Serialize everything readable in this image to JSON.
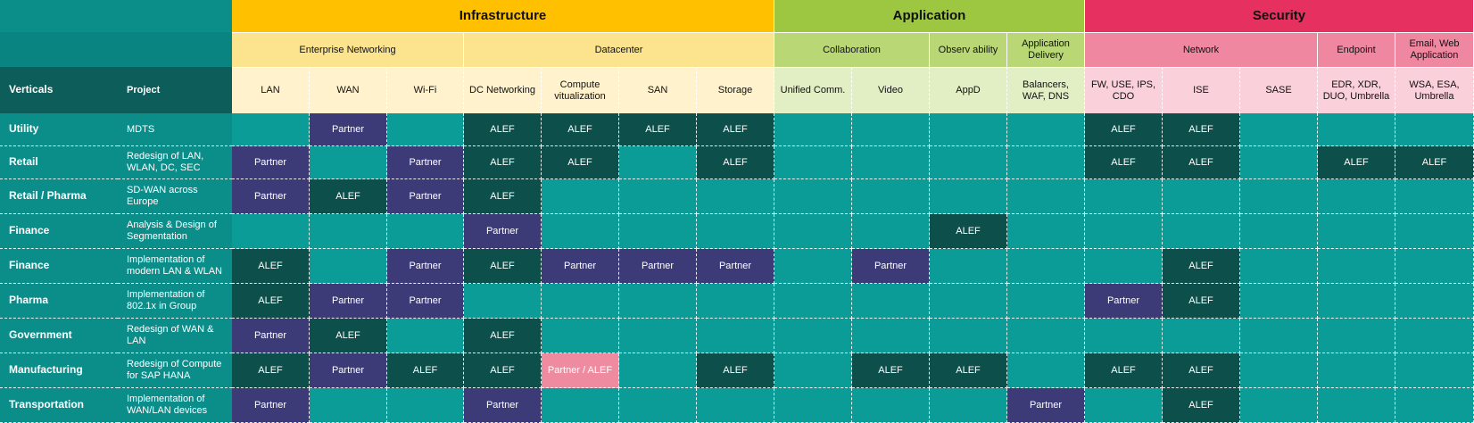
{
  "header": {
    "groups": [
      {
        "label": "Infrastructure",
        "color": "#ffc000"
      },
      {
        "label": "Application",
        "color": "#9dc740"
      },
      {
        "label": "Security",
        "color": "#e6305f"
      }
    ],
    "subgroups": [
      {
        "label": "Enterprise Networking",
        "color": "#fce38e"
      },
      {
        "label": "Datacenter",
        "color": "#fce38e"
      },
      {
        "label": "Collaboration",
        "color": "#b9d875"
      },
      {
        "label": "Observ ability",
        "color": "#b9d875"
      },
      {
        "label": "Application Delivery",
        "color": "#b9d875"
      },
      {
        "label": "Network",
        "color": "#ef87a0"
      },
      {
        "label": "Endpoint",
        "color": "#ef87a0"
      },
      {
        "label": "Email, Web Application",
        "color": "#ef87a0"
      }
    ],
    "columns": [
      {
        "label": "LAN",
        "color": "#fff2cc"
      },
      {
        "label": "WAN",
        "color": "#fff2cc"
      },
      {
        "label": "Wi-Fi",
        "color": "#fff2cc"
      },
      {
        "label": "DC Networking",
        "color": "#fff2cc"
      },
      {
        "label": "Compute vitualization",
        "color": "#fff2cc"
      },
      {
        "label": "SAN",
        "color": "#fff2cc"
      },
      {
        "label": "Storage",
        "color": "#fff2cc"
      },
      {
        "label": "Unified Comm.",
        "color": "#e2efc4"
      },
      {
        "label": "Video",
        "color": "#e2efc4"
      },
      {
        "label": "AppD",
        "color": "#e2efc4"
      },
      {
        "label": "Balancers, WAF, DNS",
        "color": "#e2efc4"
      },
      {
        "label": "FW, USE, IPS, CDO",
        "color": "#fad0da"
      },
      {
        "label": "ISE",
        "color": "#fad0da"
      },
      {
        "label": "SASE",
        "color": "#fad0da"
      },
      {
        "label": "EDR, XDR, DUO, Umbrella",
        "color": "#fad0da"
      },
      {
        "label": "WSA, ESA, Umbrella",
        "color": "#fad0da"
      }
    ],
    "verticals_label": "Verticals",
    "project_label": "Project"
  },
  "rows": [
    {
      "vertical": "Utility",
      "project": "MDTS",
      "cells": [
        "",
        "Partner",
        "",
        "ALEF",
        "ALEF",
        "ALEF",
        "ALEF",
        "",
        "",
        "",
        "",
        "ALEF",
        "ALEF",
        "",
        "",
        ""
      ]
    },
    {
      "vertical": "Retail",
      "project": "Redesign of LAN, WLAN, DC, SEC",
      "cells": [
        "Partner",
        "",
        "Partner",
        "ALEF",
        "ALEF",
        "",
        "ALEF",
        "",
        "",
        "",
        "",
        "ALEF",
        "ALEF",
        "",
        "ALEF",
        "ALEF"
      ]
    },
    {
      "vertical": "Retail / Pharma",
      "project": "SD-WAN across Europe",
      "cells": [
        "Partner",
        "ALEF",
        "Partner",
        "ALEF",
        "",
        "",
        "",
        "",
        "",
        "",
        "",
        "",
        "",
        "",
        "",
        ""
      ]
    },
    {
      "vertical": "Finance",
      "project": "Analysis & Design of Segmentation",
      "cells": [
        "",
        "",
        "",
        "Partner",
        "",
        "",
        "",
        "",
        "",
        "ALEF",
        "",
        "",
        "",
        "",
        "",
        ""
      ]
    },
    {
      "vertical": "Finance",
      "project": "Implementation of modern LAN & WLAN",
      "cells": [
        "ALEF",
        "",
        "Partner",
        "ALEF",
        "Partner",
        "Partner",
        "Partner",
        "",
        "Partner",
        "",
        "",
        "",
        "ALEF",
        "",
        "",
        ""
      ]
    },
    {
      "vertical": "Pharma",
      "project": "Implementation of 802.1x in Group",
      "cells": [
        "ALEF",
        "Partner",
        "Partner",
        "",
        "",
        "",
        "",
        "",
        "",
        "",
        "",
        "Partner",
        "ALEF",
        "",
        "",
        ""
      ]
    },
    {
      "vertical": "Government",
      "project": "Redesign of WAN & LAN",
      "cells": [
        "Partner",
        "ALEF",
        "",
        "ALEF",
        "",
        "",
        "",
        "",
        "",
        "",
        "",
        "",
        "",
        "",
        "",
        ""
      ]
    },
    {
      "vertical": "Manufacturing",
      "project": "Redesign of Compute for SAP HANA",
      "cells": [
        "ALEF",
        "Partner",
        "ALEF",
        "ALEF",
        "Partner / ALEF",
        "",
        "ALEF",
        "",
        "ALEF",
        "ALEF",
        "",
        "ALEF",
        "ALEF",
        "",
        "",
        ""
      ]
    },
    {
      "vertical": "Transportation",
      "project": "Implementation of WAN/LAN devices",
      "cells": [
        "Partner",
        "",
        "",
        "Partner",
        "",
        "",
        "",
        "",
        "",
        "",
        "Partner",
        "",
        "ALEF",
        "",
        "",
        ""
      ]
    }
  ]
}
